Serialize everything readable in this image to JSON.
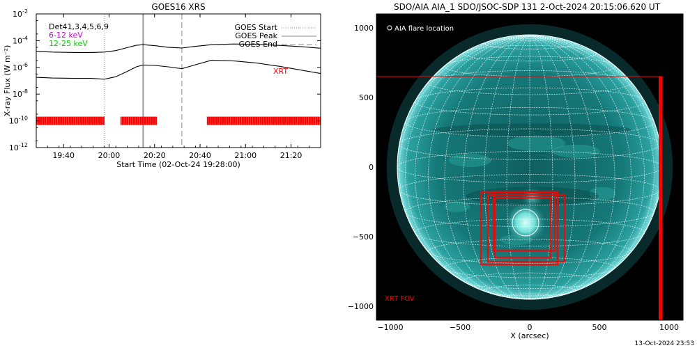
{
  "left_panel": {
    "title": "GOES16 XRS",
    "xlabel": "Start Time (02-Oct-24 19:28:00)",
    "ylabel": "X-ray Flux (W m⁻²)",
    "legend_channels": [
      {
        "text": "Det41,3,4,5,6,9",
        "color": "#000000"
      },
      {
        "text": "6-12 keV",
        "color": "#cc00cc"
      },
      {
        "text": "12-25 keV",
        "color": "#00cc00"
      }
    ],
    "legend_lines": [
      {
        "text": "GOES Start",
        "style": "dotted"
      },
      {
        "text": "GOES Peak",
        "style": "solid"
      },
      {
        "text": "GOES End",
        "style": "dashed"
      }
    ],
    "xrt_label": "XRT",
    "xrt_color": "#ff0000"
  },
  "right_panel": {
    "title": "SDO/AIA AIA_1 SDO/JSOC-SDP 131  2-Oct-2024 20:15:06.620 UT",
    "xlabel": "X (arcsec)",
    "flare_legend": "AIA flare location",
    "fov_label": "XRT FOV",
    "fov_color": "#ff0000"
  },
  "footer": {
    "timestamp": "13-Oct-2024 23:53"
  },
  "chart_data": [
    {
      "type": "line",
      "title": "GOES16 XRS",
      "xlabel": "Start Time (02-Oct-24 19:28:00)",
      "ylabel": "X-ray Flux (W m⁻²)",
      "yscale": "log",
      "xlim": [
        "19:28",
        "21:33"
      ],
      "ylim": [
        1e-12,
        0.01
      ],
      "xticks": [
        "19:40",
        "20:00",
        "20:20",
        "20:40",
        "21:00",
        "21:20"
      ],
      "yticks": [
        {
          "base": "10",
          "exp": "-2",
          "value": 0.01
        },
        {
          "base": "10",
          "exp": "-4",
          "value": 0.0001
        },
        {
          "base": "10",
          "exp": "-6",
          "value": 1e-06
        },
        {
          "base": "10",
          "exp": "-8",
          "value": 1e-08
        },
        {
          "base": "10",
          "exp": "-10",
          "value": 1e-10
        },
        {
          "base": "10",
          "exp": "-12",
          "value": 1e-12
        }
      ],
      "vlines": {
        "goes_start": "19:58",
        "goes_peak": "20:15",
        "goes_end": "20:32"
      },
      "series": [
        {
          "x": [
            "19:28",
            "19:35",
            "19:45",
            "19:52",
            "19:58",
            "20:03",
            "20:08",
            "20:12",
            "20:15",
            "20:20",
            "20:26",
            "20:32",
            "20:37",
            "20:45",
            "20:55",
            "21:05",
            "21:15",
            "21:25",
            "21:33"
          ],
          "y": [
            1.6e-05,
            1.4e-05,
            1.3e-05,
            1.3e-05,
            1.4e-05,
            1.8e-05,
            3e-05,
            4.5e-05,
            5e-05,
            4.2e-05,
            3.2e-05,
            2.8e-05,
            3.6e-05,
            5e-05,
            5.6e-05,
            5.2e-05,
            4.4e-05,
            3.5e-05,
            2.7e-05
          ]
        },
        {
          "x": [
            "19:28",
            "19:35",
            "19:45",
            "19:52",
            "19:58",
            "20:03",
            "20:08",
            "20:12",
            "20:15",
            "20:20",
            "20:26",
            "20:32",
            "20:37",
            "20:45",
            "20:55",
            "21:05",
            "21:15",
            "21:25",
            "21:33"
          ],
          "y": [
            1.8e-07,
            1.6e-07,
            1.5e-07,
            1.5e-07,
            1.3e-07,
            2e-07,
            5e-07,
            1.1e-06,
            1.5e-06,
            1.4e-06,
            1.1e-06,
            8e-07,
            1.4e-06,
            3.4e-06,
            3e-06,
            2.1e-06,
            1.2e-06,
            6e-07,
            3.5e-07
          ]
        }
      ],
      "xrt_coverage": [
        [
          "19:28",
          "19:58"
        ],
        [
          "20:05",
          "20:21"
        ],
        [
          "20:43",
          "21:33"
        ]
      ]
    },
    {
      "type": "image",
      "title": "SDO/AIA AIA_1 SDO/JSOC-SDP 131  2-Oct-2024 20:15:06.620 UT",
      "xlabel": "X (arcsec)",
      "xlim": [
        -1100,
        1100
      ],
      "ylim": [
        -1100,
        1100
      ],
      "xticks": [
        "−1000",
        "−500",
        "0",
        "500",
        "1000"
      ],
      "yticks": [
        "1000",
        "500",
        "0",
        "−500",
        "−1000"
      ],
      "solar_radius_arcsec": 950,
      "flare_location": [
        -30,
        -400
      ],
      "xrt_fovs": [
        {
          "x0": -1100,
          "x1": 950,
          "y0": -1100,
          "y1": 650
        },
        {
          "x0": -350,
          "x1": 200,
          "y0": -700,
          "y1": -180
        },
        {
          "x0": -300,
          "x1": 250,
          "y0": -680,
          "y1": -200
        },
        {
          "x0": -250,
          "x1": 150,
          "y0": -650,
          "y1": -220
        },
        {
          "x0": -260,
          "x1": 180,
          "y0": -600,
          "y1": -180
        }
      ]
    }
  ]
}
